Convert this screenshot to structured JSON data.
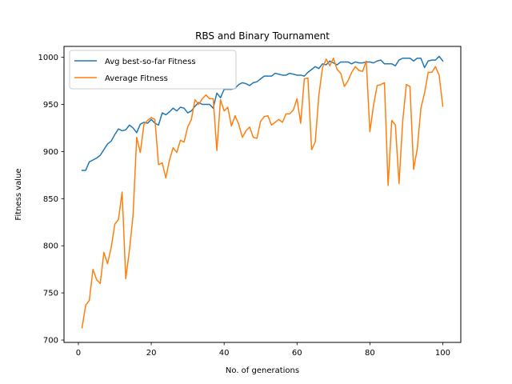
{
  "chart_data": {
    "type": "line",
    "title": "RBS and Binary Tournament",
    "xlabel": "No. of generations",
    "ylabel": "Fitness value",
    "xlim": [
      -3.95,
      104.95
    ],
    "ylim": [
      697.5,
      1011.5
    ],
    "xticks": [
      0,
      20,
      40,
      60,
      80,
      100
    ],
    "yticks": [
      700,
      750,
      800,
      850,
      900,
      950,
      1000
    ],
    "grid": false,
    "legend_position": "top-left",
    "x": [
      1,
      2,
      3,
      4,
      5,
      6,
      7,
      8,
      9,
      10,
      11,
      12,
      13,
      14,
      15,
      16,
      17,
      18,
      19,
      20,
      21,
      22,
      23,
      24,
      25,
      26,
      27,
      28,
      29,
      30,
      31,
      32,
      33,
      34,
      35,
      36,
      37,
      38,
      39,
      40,
      41,
      42,
      43,
      44,
      45,
      46,
      47,
      48,
      49,
      50,
      51,
      52,
      53,
      54,
      55,
      56,
      57,
      58,
      59,
      60,
      61,
      62,
      63,
      64,
      65,
      66,
      67,
      68,
      69,
      70,
      71,
      72,
      73,
      74,
      75,
      76,
      77,
      78,
      79,
      80,
      81,
      82,
      83,
      84,
      85,
      86,
      87,
      88,
      89,
      90,
      91,
      92,
      93,
      94,
      95,
      96,
      97,
      98,
      99,
      100
    ],
    "series": [
      {
        "name": "Avg best-so-far Fitness",
        "color": "#1f77b4",
        "values": [
          880,
          880,
          889,
          891,
          893,
          896,
          902,
          908,
          911,
          918,
          924,
          922,
          923,
          928,
          925,
          920,
          929,
          931,
          930,
          934,
          930,
          928,
          941,
          939,
          942,
          946,
          943,
          947,
          946,
          941,
          943,
          948,
          952,
          950,
          950,
          950,
          946,
          962,
          957,
          966,
          966,
          966,
          967,
          971,
          973,
          972,
          970,
          973,
          974,
          977,
          980,
          980,
          980,
          983,
          982,
          981,
          981,
          983,
          982,
          981,
          981,
          980,
          984,
          987,
          990,
          988,
          993,
          992,
          996,
          994,
          992,
          995,
          995,
          995,
          993,
          995,
          994,
          994,
          995,
          995,
          994,
          996,
          997,
          993,
          993,
          993,
          991,
          997,
          999,
          999,
          999,
          996,
          999,
          999,
          989,
          996,
          997,
          997,
          1001,
          996
        ]
      },
      {
        "name": "Average Fitness",
        "color": "#ff7f0e",
        "values": [
          713,
          737,
          742,
          775,
          764,
          760,
          793,
          781,
          798,
          823,
          828,
          857,
          765,
          795,
          832,
          915,
          899,
          929,
          933,
          936,
          934,
          886,
          888,
          872,
          891,
          904,
          899,
          912,
          910,
          926,
          934,
          955,
          950,
          956,
          960,
          956,
          956,
          901,
          955,
          943,
          947,
          927,
          938,
          929,
          915,
          922,
          926,
          915,
          914,
          932,
          937,
          938,
          928,
          931,
          934,
          931,
          940,
          940,
          944,
          956,
          930,
          977,
          978,
          902,
          910,
          960,
          989,
          998,
          991,
          999,
          987,
          983,
          969,
          975,
          984,
          990,
          986,
          985,
          996,
          921,
          949,
          970,
          971,
          973,
          864,
          933,
          928,
          866,
          932,
          971,
          969,
          881,
          903,
          946,
          962,
          984,
          984,
          990,
          981,
          948
        ]
      }
    ]
  }
}
